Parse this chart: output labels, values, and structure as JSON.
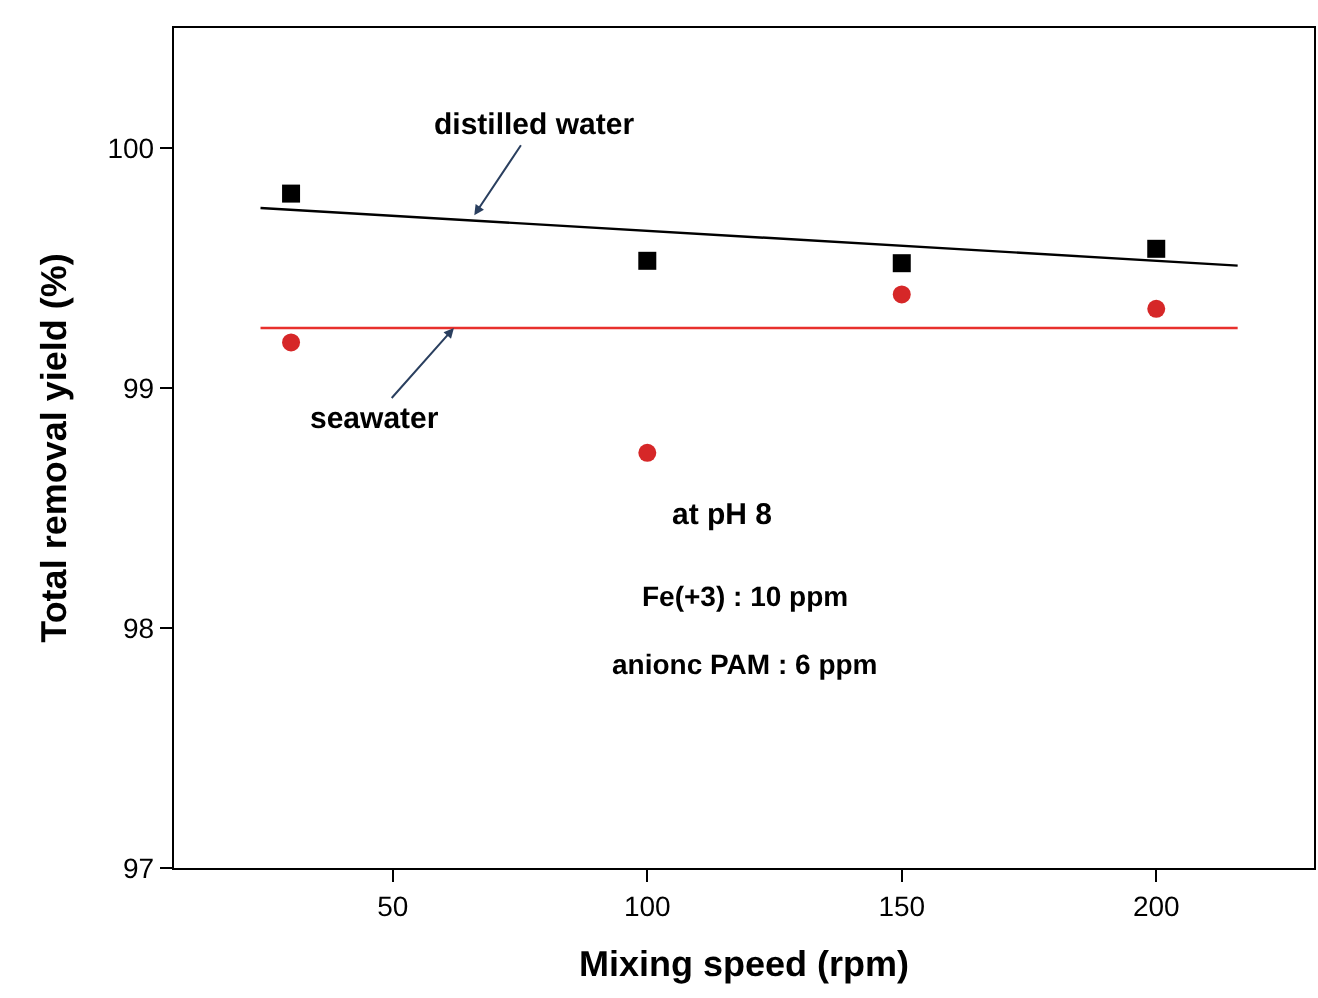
{
  "chart_data": {
    "type": "scatter",
    "xlabel": "Mixing speed (rpm)",
    "ylabel": "Total removal yield (%)",
    "xlim": [
      7,
      231
    ],
    "xticks": [
      50,
      100,
      150,
      200
    ],
    "ylim": [
      97,
      100.5
    ],
    "yticks": [
      97,
      98,
      99,
      100
    ],
    "series": [
      {
        "marker": "square",
        "color": "#000000",
        "x": [
          30,
          100,
          150,
          200
        ],
        "values": [
          99.81,
          99.53,
          99.52,
          99.58
        ]
      },
      {
        "marker": "circle",
        "color": "#d62728",
        "x": [
          30,
          100,
          150,
          200
        ],
        "values": [
          99.19,
          98.73,
          99.39,
          99.33
        ]
      },
      {
        "type": "line",
        "marker": "none",
        "color": "#000000",
        "x": [
          24,
          216
        ],
        "values": [
          99.75,
          99.51
        ]
      },
      {
        "type": "line",
        "marker": "none",
        "color": "#e8302c",
        "x": [
          24,
          216
        ],
        "values": [
          99.25,
          99.25
        ]
      }
    ],
    "annotations": [
      {
        "text": "distilled water",
        "x": 66,
        "y": 99.72
      },
      {
        "text": "seawater",
        "x": 62,
        "y": 99.25
      },
      "at pH 8",
      "Fe(+3) : 10 ppm",
      "anionc PAM : 6 ppm"
    ]
  }
}
